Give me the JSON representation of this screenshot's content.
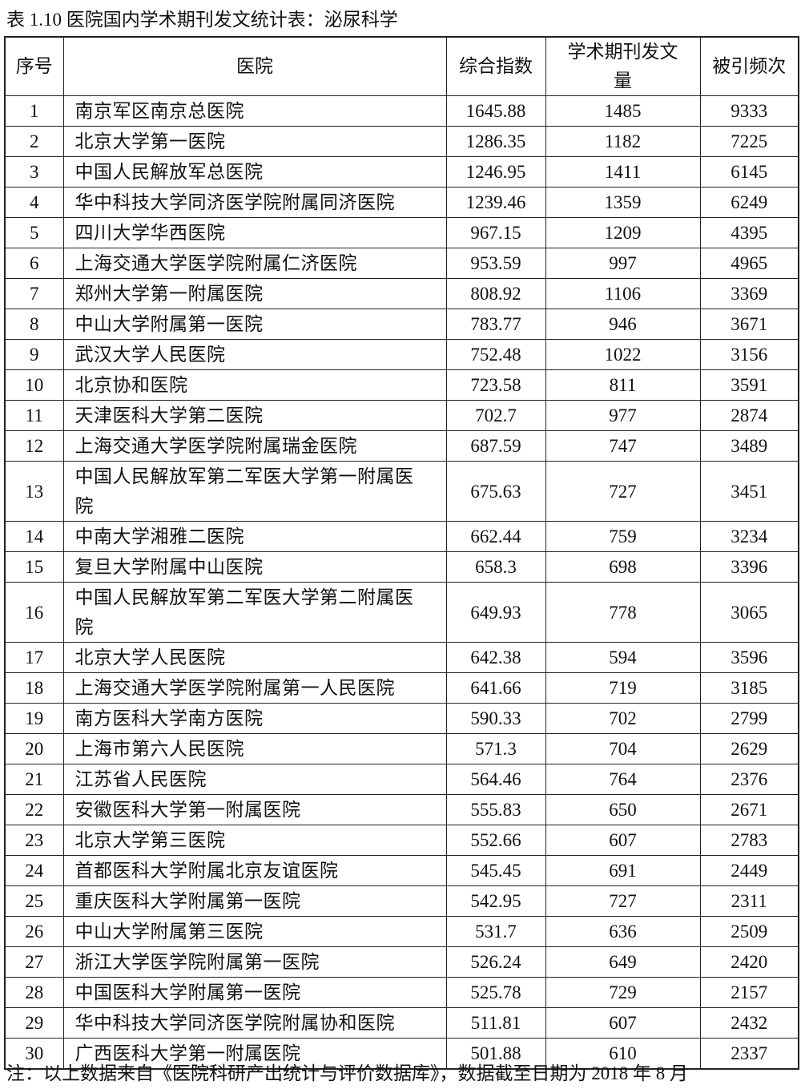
{
  "title": "表 1.10 医院国内学术期刊发文统计表：泌尿科学",
  "headers": [
    "序号",
    "医院",
    "综合指数",
    "学术期刊发文量",
    "被引频次"
  ],
  "rows": [
    [
      "1",
      "南京军区南京总医院",
      "1645.88",
      "1485",
      "9333"
    ],
    [
      "2",
      "北京大学第一医院",
      "1286.35",
      "1182",
      "7225"
    ],
    [
      "3",
      "中国人民解放军总医院",
      "1246.95",
      "1411",
      "6145"
    ],
    [
      "4",
      "华中科技大学同济医学院附属同济医院",
      "1239.46",
      "1359",
      "6249"
    ],
    [
      "5",
      "四川大学华西医院",
      "967.15",
      "1209",
      "4395"
    ],
    [
      "6",
      "上海交通大学医学院附属仁济医院",
      "953.59",
      "997",
      "4965"
    ],
    [
      "7",
      "郑州大学第一附属医院",
      "808.92",
      "1106",
      "3369"
    ],
    [
      "8",
      "中山大学附属第一医院",
      "783.77",
      "946",
      "3671"
    ],
    [
      "9",
      "武汉大学人民医院",
      "752.48",
      "1022",
      "3156"
    ],
    [
      "10",
      "北京协和医院",
      "723.58",
      "811",
      "3591"
    ],
    [
      "11",
      "天津医科大学第二医院",
      "702.7",
      "977",
      "2874"
    ],
    [
      "12",
      "上海交通大学医学院附属瑞金医院",
      "687.59",
      "747",
      "3489"
    ],
    [
      "13",
      "中国人民解放军第二军医大学第一附属医院",
      "675.63",
      "727",
      "3451"
    ],
    [
      "14",
      "中南大学湘雅二医院",
      "662.44",
      "759",
      "3234"
    ],
    [
      "15",
      "复旦大学附属中山医院",
      "658.3",
      "698",
      "3396"
    ],
    [
      "16",
      "中国人民解放军第二军医大学第二附属医院",
      "649.93",
      "778",
      "3065"
    ],
    [
      "17",
      "北京大学人民医院",
      "642.38",
      "594",
      "3596"
    ],
    [
      "18",
      "上海交通大学医学院附属第一人民医院",
      "641.66",
      "719",
      "3185"
    ],
    [
      "19",
      "南方医科大学南方医院",
      "590.33",
      "702",
      "2799"
    ],
    [
      "20",
      "上海市第六人民医院",
      "571.3",
      "704",
      "2629"
    ],
    [
      "21",
      "江苏省人民医院",
      "564.46",
      "764",
      "2376"
    ],
    [
      "22",
      "安徽医科大学第一附属医院",
      "555.83",
      "650",
      "2671"
    ],
    [
      "23",
      "北京大学第三医院",
      "552.66",
      "607",
      "2783"
    ],
    [
      "24",
      "首都医科大学附属北京友谊医院",
      "545.45",
      "691",
      "2449"
    ],
    [
      "25",
      "重庆医科大学附属第一医院",
      "542.95",
      "727",
      "2311"
    ],
    [
      "26",
      "中山大学附属第三医院",
      "531.7",
      "636",
      "2509"
    ],
    [
      "27",
      "浙江大学医学院附属第一医院",
      "526.24",
      "649",
      "2420"
    ],
    [
      "28",
      "中国医科大学附属第一医院",
      "525.78",
      "729",
      "2157"
    ],
    [
      "29",
      "华中科技大学同济医学院附属协和医院",
      "511.81",
      "607",
      "2432"
    ],
    [
      "30",
      "广西医科大学第一附属医院",
      "501.88",
      "610",
      "2337"
    ]
  ],
  "note": "注：以上数据来自《医院科研产出统计与评价数据库》，数据截至日期为 2018 年 8 月"
}
